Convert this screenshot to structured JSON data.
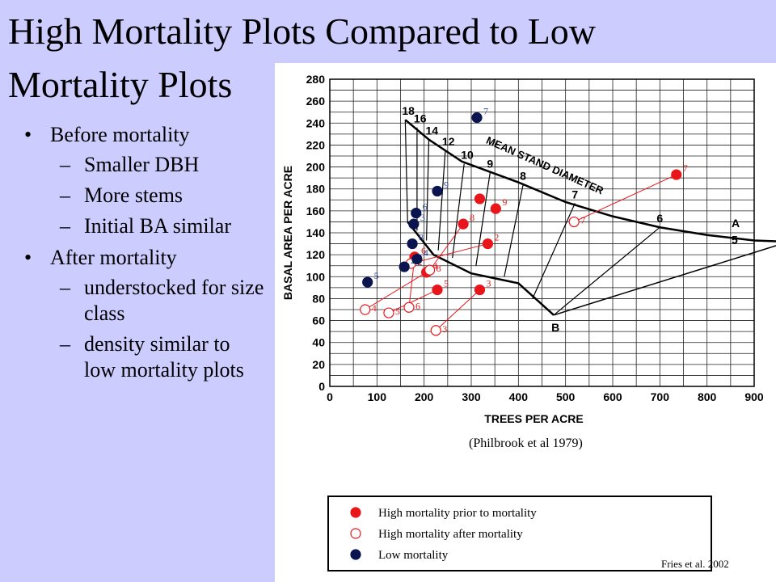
{
  "slide": {
    "title": "High Mortality Plots Compared to Low Mortality Plots",
    "bullets": [
      {
        "text": "Before mortality",
        "sub": [
          "Smaller DBH",
          "More stems",
          "Initial BA similar"
        ]
      },
      {
        "text": "After mortality",
        "sub": [
          "understocked for size class",
          "density similar to low mortality plots"
        ]
      }
    ],
    "bullet_glyph": "•",
    "sub_glyph": "–",
    "caption": "(Philbrook et al 1979)",
    "credit": "Fries et al. 2002"
  },
  "colors": {
    "background": "#ccccff",
    "high": "#e8161b",
    "low": "#0a1550",
    "blue_label": "#2b4a9a"
  },
  "chart_data": {
    "type": "scatter",
    "xlabel": "TREES PER ACRE",
    "ylabel": "BASAL AREA PER ACRE",
    "xlim": [
      0,
      900
    ],
    "ylim": [
      0,
      280
    ],
    "xticks": [
      0,
      100,
      200,
      300,
      400,
      500,
      600,
      700,
      800,
      900
    ],
    "yticks": [
      0,
      20,
      40,
      60,
      80,
      100,
      120,
      140,
      160,
      180,
      200,
      220,
      240,
      260,
      280
    ],
    "grid": true,
    "legend_position": "bottom",
    "legend": [
      {
        "label": "High mortality prior to mortality",
        "marker": "filled-red"
      },
      {
        "label": "High mortality after mortality",
        "marker": "open-red"
      },
      {
        "label": "Low mortality",
        "marker": "filled-navy"
      }
    ],
    "stocking_chart": {
      "curve_A_label": "A",
      "curve_B_label": "B",
      "line_label": "MEAN STAND DIAMETER",
      "right_label": "5",
      "diameters": [
        "18",
        "16",
        "14",
        "12",
        "10",
        "9",
        "8",
        "7",
        "6"
      ],
      "curve_A": [
        [
          160,
          243
        ],
        [
          210,
          225
        ],
        [
          280,
          205
        ],
        [
          400,
          186
        ],
        [
          500,
          168
        ],
        [
          600,
          155
        ],
        [
          700,
          145
        ],
        [
          800,
          138
        ],
        [
          900,
          133
        ],
        [
          960,
          132
        ]
      ],
      "curve_B": [
        [
          165,
          150
        ],
        [
          220,
          120
        ],
        [
          300,
          103
        ],
        [
          400,
          94
        ],
        [
          475,
          65
        ]
      ],
      "right_point": [
        952,
        129
      ],
      "diameter_points": [
        {
          "d": "18",
          "a": [
            160,
            243
          ],
          "b": [
            165,
            150
          ]
        },
        {
          "d": "16",
          "a": [
            185,
            236
          ],
          "b": [
            185,
            142
          ]
        },
        {
          "d": "14",
          "a": [
            210,
            225
          ],
          "b": [
            205,
            133
          ]
        },
        {
          "d": "12",
          "a": [
            245,
            215
          ],
          "b": [
            230,
            124
          ]
        },
        {
          "d": "10",
          "a": [
            285,
            203
          ],
          "b": [
            260,
            117
          ]
        },
        {
          "d": "9",
          "a": [
            340,
            195
          ],
          "b": [
            310,
            110
          ]
        },
        {
          "d": "8",
          "a": [
            410,
            184
          ],
          "b": [
            370,
            100
          ]
        },
        {
          "d": "7",
          "a": [
            520,
            167
          ],
          "b": [
            430,
            80
          ]
        },
        {
          "d": "6",
          "a": [
            700,
            145
          ],
          "b": [
            475,
            65
          ]
        }
      ]
    },
    "series": [
      {
        "name": "High mortality prior to mortality",
        "points": [
          {
            "label": "4",
            "x": 205,
            "y": 104
          },
          {
            "label": "5",
            "x": 228,
            "y": 88
          },
          {
            "label": "6",
            "x": 180,
            "y": 118
          },
          {
            "label": "8",
            "x": 283,
            "y": 148
          },
          {
            "label": "9",
            "x": 352,
            "y": 162
          },
          {
            "label": "2",
            "x": 335,
            "y": 130
          },
          {
            "label": "3",
            "x": 318,
            "y": 88
          },
          {
            "label": "7",
            "x": 735,
            "y": 193
          },
          {
            "label": "",
            "x": 318,
            "y": 171
          }
        ]
      },
      {
        "name": "High mortality after mortality",
        "points": [
          {
            "label": "4",
            "x": 75,
            "y": 70
          },
          {
            "label": "5",
            "x": 125,
            "y": 67
          },
          {
            "label": "6",
            "x": 168,
            "y": 72
          },
          {
            "label": "8",
            "x": 212,
            "y": 106
          },
          {
            "label": "2",
            "x": 172,
            "y": 112
          },
          {
            "label": "3",
            "x": 225,
            "y": 51
          },
          {
            "label": "7",
            "x": 518,
            "y": 150
          }
        ]
      },
      {
        "name": "Low mortality",
        "points": [
          {
            "label": "5",
            "x": 80,
            "y": 95
          },
          {
            "label": "2",
            "x": 158,
            "y": 109
          },
          {
            "label": "4",
            "x": 185,
            "y": 116
          },
          {
            "label": "8",
            "x": 175,
            "y": 130
          },
          {
            "label": "3",
            "x": 178,
            "y": 148
          },
          {
            "label": "6",
            "x": 183,
            "y": 158
          },
          {
            "label": "9",
            "x": 228,
            "y": 178
          },
          {
            "label": "7",
            "x": 312,
            "y": 245
          }
        ]
      }
    ]
  }
}
